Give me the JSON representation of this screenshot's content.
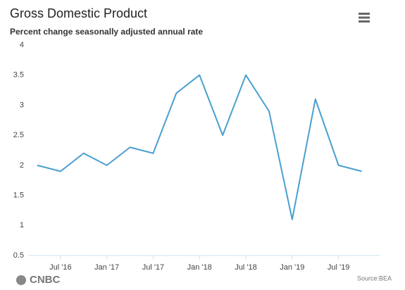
{
  "chart_data": {
    "type": "line",
    "title": "Gross Domestic Product",
    "subtitle": "Percent change seasonally adjusted annual rate",
    "source": "Source:BEA",
    "brand": "CNBC",
    "categories": [
      null,
      "Jul '16",
      null,
      "Jan '17",
      null,
      "Jul '17",
      null,
      "Jan '18",
      null,
      "Jul '18",
      null,
      "Jan '19",
      null,
      "Jul '19",
      null
    ],
    "series": [
      {
        "name": "GDP",
        "color": "#4a9fd0",
        "values": [
          2.0,
          1.9,
          2.2,
          2.0,
          2.3,
          2.2,
          3.2,
          3.5,
          2.5,
          3.5,
          2.9,
          1.1,
          3.1,
          2.0,
          1.9
        ]
      }
    ],
    "ylim": [
      0.5,
      4
    ],
    "yticks": [
      0.5,
      1,
      1.5,
      2,
      2.5,
      3,
      3.5,
      4
    ],
    "grid": false
  }
}
